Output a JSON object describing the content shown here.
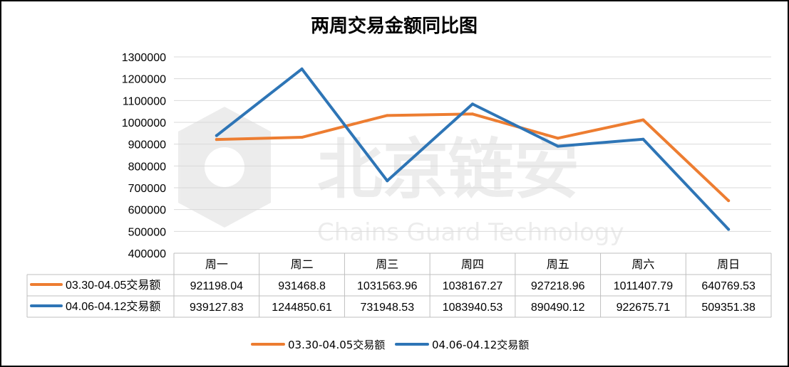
{
  "chart_data": {
    "type": "line",
    "title": "两周交易金额同比图",
    "categories": [
      "周一",
      "周二",
      "周三",
      "周四",
      "周五",
      "周六",
      "周日"
    ],
    "series": [
      {
        "name": "03.30-04.05交易额",
        "color": "#ED7D31",
        "values": [
          921198.04,
          931468.8,
          1031563.96,
          1038167.27,
          927218.96,
          1011407.79,
          640769.53
        ]
      },
      {
        "name": "04.06-04.12交易额",
        "color": "#2E75B6",
        "values": [
          939127.83,
          1244850.61,
          731948.53,
          1083940.53,
          890490.12,
          922675.71,
          509351.38
        ]
      }
    ],
    "table_values": [
      [
        "921198.04",
        "931468.8",
        "1031563.96",
        "1038167.27",
        "927218.96",
        "1011407.79",
        "640769.53"
      ],
      [
        "939127.83",
        "1244850.61",
        "731948.53",
        "1083940.53",
        "890490.12",
        "922675.71",
        "509351.38"
      ]
    ],
    "ylim": [
      400000,
      1300000
    ],
    "yticks": [
      "400000",
      "500000",
      "600000",
      "700000",
      "800000",
      "900000",
      "1000000",
      "1100000",
      "1200000",
      "1300000"
    ],
    "grid": true,
    "legend_position": "bottom",
    "data_table": true
  },
  "watermark": {
    "text": "北京链安",
    "subtext": "Chains Guard Technology"
  }
}
